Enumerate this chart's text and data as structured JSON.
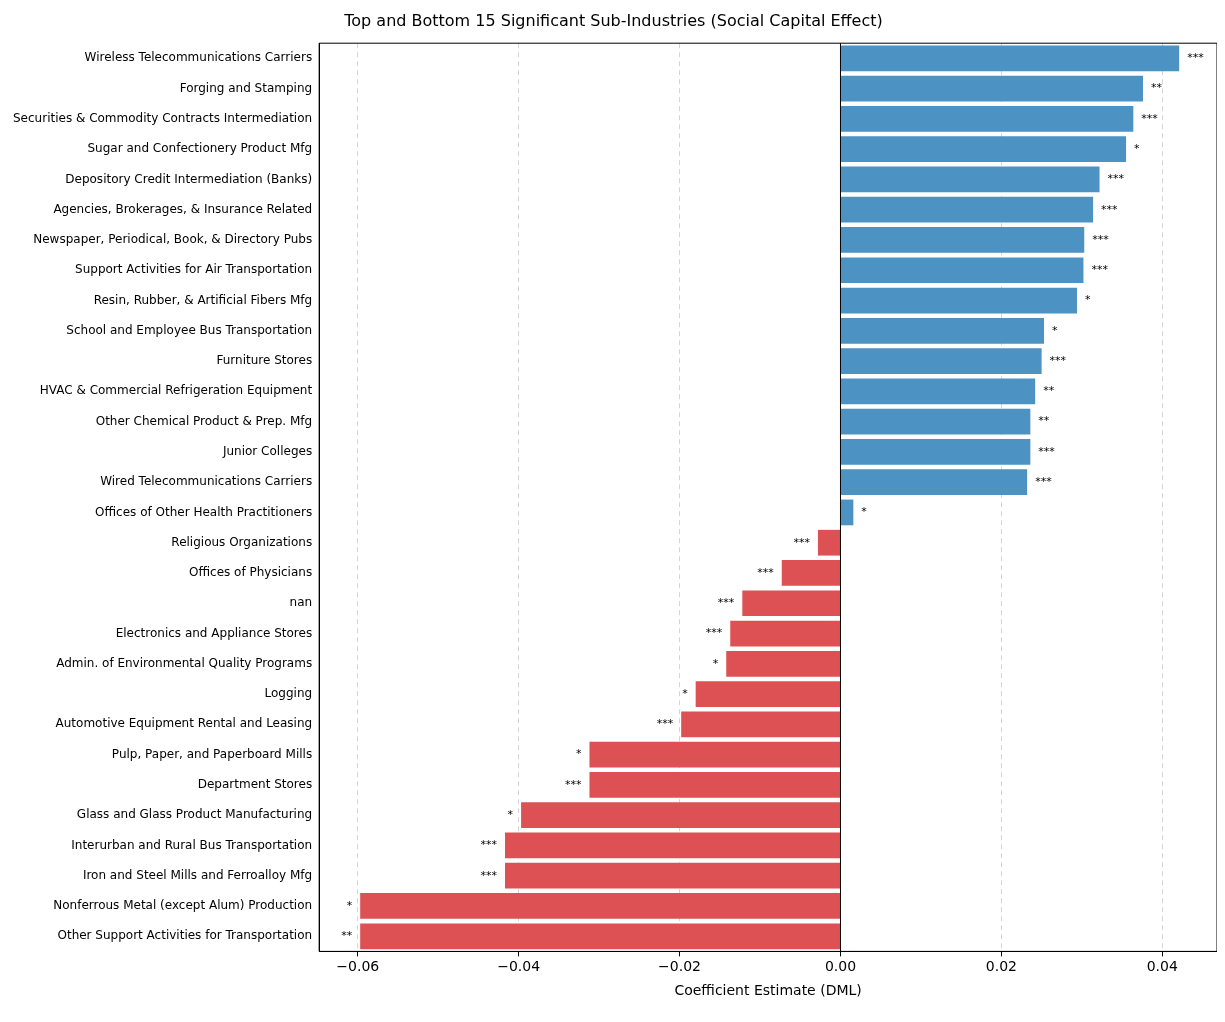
{
  "chart_data": {
    "type": "bar",
    "orientation": "horizontal",
    "title": "Top and Bottom 15 Significant Sub-Industries (Social Capital Effect)",
    "xlabel": "Coefficient Estimate (DML)",
    "categories": [
      "Wireless Telecommunications Carriers",
      "Forging and Stamping",
      "Securities & Commodity Contracts Intermediation",
      "Sugar and Confectionery Product Mfg",
      "Depository Credit Intermediation (Banks)",
      "Agencies, Brokerages, & Insurance Related",
      "Newspaper, Periodical, Book, & Directory Pubs",
      "Support Activities for Air Transportation",
      "Resin, Rubber, & Artificial Fibers Mfg",
      "School and Employee Bus Transportation",
      "Furniture Stores",
      "HVAC & Commercial Refrigeration Equipment",
      "Other Chemical Product & Prep. Mfg",
      "Junior Colleges",
      "Wired Telecommunications Carriers",
      "Offices of Other Health Practitioners",
      "Religious Organizations",
      "Offices of Physicians",
      "nan",
      "Electronics and Appliance Stores",
      "Admin. of Environmental Quality Programs",
      "Logging",
      "Automotive Equipment Rental and Leasing",
      "Pulp, Paper, and Paperboard Mills",
      "Department Stores",
      "Glass and Glass Product Manufacturing",
      "Interurban and Rural Bus Transportation",
      "Iron and Steel Mills and Ferroalloy Mfg",
      "Nonferrous Metal (except Alum) Production",
      "Other Support Activities for Transportation"
    ],
    "values": [
      0.0421,
      0.0376,
      0.0364,
      0.0355,
      0.0322,
      0.0314,
      0.0303,
      0.0302,
      0.0294,
      0.0253,
      0.025,
      0.0242,
      0.0236,
      0.0236,
      0.0232,
      0.0016,
      -0.0028,
      -0.0073,
      -0.0122,
      -0.0137,
      -0.0142,
      -0.018,
      -0.0198,
      -0.0312,
      -0.0312,
      -0.0397,
      -0.0417,
      -0.0417,
      -0.0597,
      -0.0597
    ],
    "value_labels": [
      "***",
      "**",
      "***",
      "*",
      "***",
      "***",
      "***",
      "***",
      "*",
      "*",
      "***",
      "**",
      "**",
      "***",
      "***",
      "*",
      "***",
      "***",
      "***",
      "***",
      "*",
      "*",
      "***",
      "*",
      "***",
      "*",
      "***",
      "***",
      "*",
      "**"
    ],
    "colors": [
      "#4c93c3",
      "#4c93c3",
      "#4c93c3",
      "#4c93c3",
      "#4c93c3",
      "#4c93c3",
      "#4c93c3",
      "#4c93c3",
      "#4c93c3",
      "#4c93c3",
      "#4c93c3",
      "#4c93c3",
      "#4c93c3",
      "#4c93c3",
      "#4c93c3",
      "#4c93c3",
      "#dd5154",
      "#dd5154",
      "#dd5154",
      "#dd5154",
      "#dd5154",
      "#dd5154",
      "#dd5154",
      "#dd5154",
      "#dd5154",
      "#dd5154",
      "#dd5154",
      "#dd5154",
      "#dd5154",
      "#dd5154"
    ],
    "xlim": [
      -0.0648,
      0.0468
    ],
    "xticks": [
      {
        "value": -0.06,
        "label": "−0.06"
      },
      {
        "value": -0.04,
        "label": "−0.04"
      },
      {
        "value": -0.02,
        "label": "−0.02"
      },
      {
        "value": 0,
        "label": "0.00"
      },
      {
        "value": 0.02,
        "label": "0.02"
      },
      {
        "value": 0.04,
        "label": "0.04"
      }
    ],
    "ref_lines": [
      {
        "axis": "x",
        "value": 0,
        "color": "#000000",
        "line_style": "solid"
      }
    ],
    "grid": "x",
    "line_style": "dashed",
    "legend": false
  }
}
